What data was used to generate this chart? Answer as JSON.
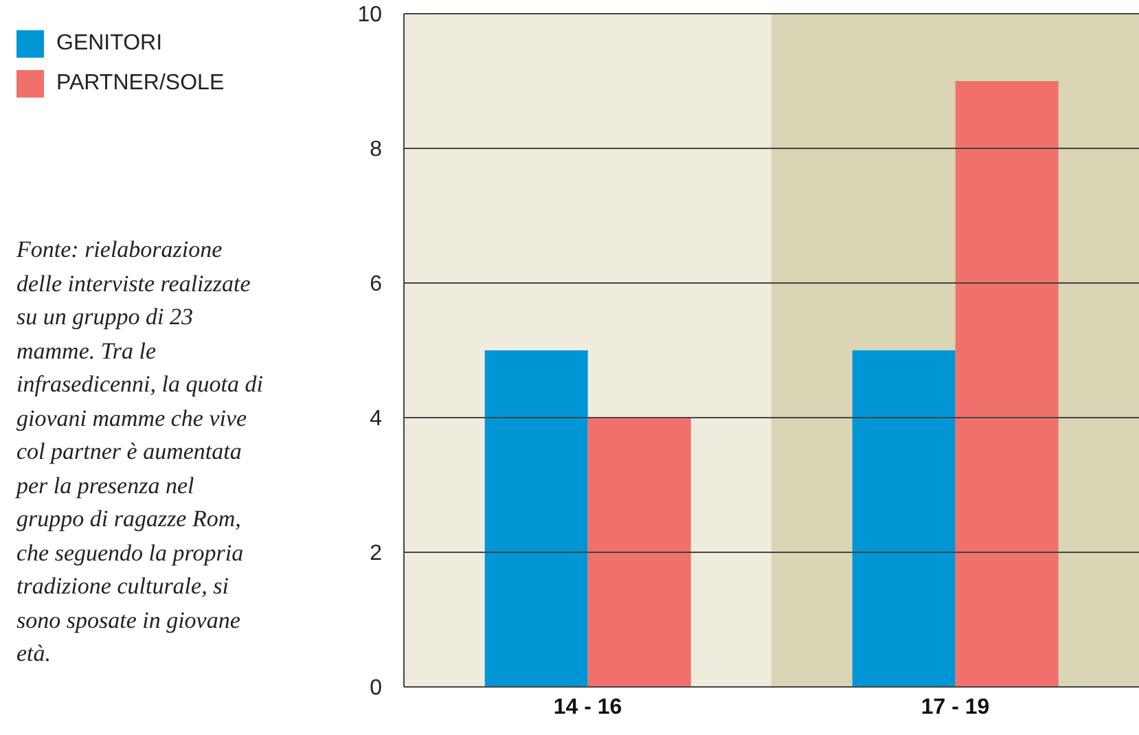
{
  "chart_data": {
    "type": "bar",
    "categories": [
      "14 - 16",
      "17 - 19"
    ],
    "series": [
      {
        "name": "GENITORI",
        "color": "#0096d6",
        "values": [
          5,
          5
        ]
      },
      {
        "name": "PARTNER/SOLE",
        "color": "#f0716b",
        "values": [
          4,
          9
        ]
      }
    ],
    "ylim": [
      0,
      10
    ],
    "yticks": [
      0,
      2,
      4,
      6,
      8,
      10
    ],
    "grid": "y",
    "legend": "top left",
    "bands": [
      {
        "axis": "x",
        "from": "14 - 16",
        "to": "14 - 16",
        "color": "#efebdd"
      },
      {
        "axis": "x",
        "from": "17 - 19",
        "to": "17 - 19",
        "color": "#d9d5b5"
      }
    ],
    "annotations": [
      "Fonte: rielaborazione delle interviste realizzate su un gruppo di 23 mamme. Tra le infrasedicenni, la quota di giovani mamme che vive col partner è aumentata per la presenza nel gruppo di ragazze Rom, che seguendo la propria tradizione culturale, si sono sposate in giovane età."
    ]
  }
}
